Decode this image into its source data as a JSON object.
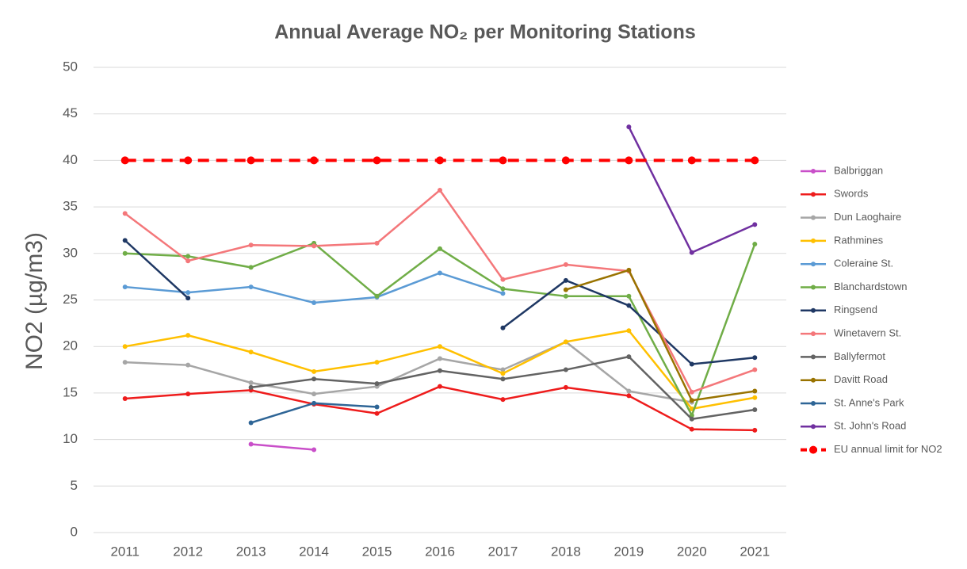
{
  "chart_data": {
    "type": "line",
    "title": "Annual Average NO₂ per Monitoring Stations",
    "y_label": "NO2 (µg/m3)",
    "categories": [
      "2011",
      "2012",
      "2013",
      "2014",
      "2015",
      "2016",
      "2017",
      "2018",
      "2019",
      "2020",
      "2021"
    ],
    "ylim": [
      0,
      50
    ],
    "yticks": [
      0,
      5,
      10,
      15,
      20,
      25,
      30,
      35,
      40,
      45,
      50
    ],
    "grid": true,
    "legend": "right",
    "series": [
      {
        "name": "Balbriggan",
        "color": "#c94fc9",
        "values": [
          null,
          null,
          9.5,
          8.9,
          null,
          null,
          null,
          null,
          null,
          null,
          null
        ]
      },
      {
        "name": "Swords",
        "color": "#ee1c1c",
        "values": [
          14.4,
          14.9,
          15.3,
          13.8,
          12.8,
          15.7,
          14.3,
          15.6,
          14.7,
          11.1,
          11.0
        ]
      },
      {
        "name": "Dun Laoghaire",
        "color": "#a6a6a6",
        "values": [
          18.3,
          18.0,
          16.1,
          14.9,
          15.7,
          18.7,
          17.5,
          20.5,
          15.2,
          14.0,
          null
        ]
      },
      {
        "name": "Rathmines",
        "color": "#ffc000",
        "values": [
          20.0,
          21.2,
          19.4,
          17.3,
          18.3,
          20.0,
          17.1,
          20.5,
          21.7,
          13.3,
          14.5
        ]
      },
      {
        "name": "Coleraine St.",
        "color": "#5b9bd5",
        "values": [
          26.4,
          25.8,
          26.4,
          24.7,
          25.3,
          27.9,
          25.7,
          null,
          null,
          null,
          null
        ]
      },
      {
        "name": "Blanchardstown",
        "color": "#70ad47",
        "values": [
          30.0,
          29.7,
          28.5,
          31.1,
          25.4,
          30.5,
          26.2,
          25.4,
          25.4,
          12.6,
          31.0
        ]
      },
      {
        "name": "Ringsend",
        "color": "#1f3864",
        "values": [
          31.4,
          25.2,
          null,
          null,
          null,
          null,
          22.0,
          27.1,
          24.4,
          18.1,
          18.8
        ]
      },
      {
        "name": "Winetavern St.",
        "color": "#f4777a",
        "values": [
          34.3,
          29.2,
          30.9,
          30.8,
          31.1,
          36.8,
          27.2,
          28.8,
          28.1,
          15.1,
          17.5
        ]
      },
      {
        "name": "Ballyfermot",
        "color": "#636363",
        "values": [
          null,
          null,
          15.6,
          16.5,
          16.0,
          17.4,
          16.5,
          17.5,
          18.9,
          12.2,
          13.2
        ]
      },
      {
        "name": "Davitt Road",
        "color": "#997300",
        "values": [
          null,
          null,
          null,
          null,
          null,
          null,
          null,
          26.1,
          28.2,
          14.2,
          15.2
        ]
      },
      {
        "name": "St. Anne's Park",
        "color": "#2e6596",
        "values": [
          null,
          null,
          11.8,
          13.9,
          13.5,
          null,
          null,
          null,
          null,
          null,
          null
        ]
      },
      {
        "name": "St. John's Road",
        "color": "#7030a0",
        "values": [
          null,
          null,
          null,
          null,
          null,
          null,
          null,
          null,
          43.6,
          30.1,
          33.1
        ]
      },
      {
        "name": "EU annual limit for NO2",
        "color": "#ff0000",
        "line_style": "dashed",
        "values": [
          40,
          40,
          40,
          40,
          40,
          40,
          40,
          40,
          40,
          40,
          40
        ]
      }
    ]
  }
}
